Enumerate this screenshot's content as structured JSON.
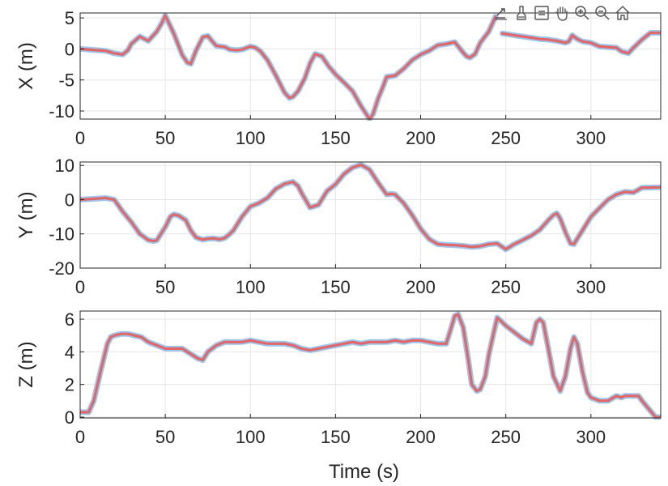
{
  "toolbar": {
    "icons": [
      "export-icon",
      "brush-icon",
      "datatips-icon",
      "pan-icon",
      "zoom-in-icon",
      "zoom-out-icon",
      "home-icon"
    ]
  },
  "chart_data": [
    {
      "type": "line",
      "title": "",
      "xlabel": "",
      "ylabel": "X (m)",
      "xlim": [
        0,
        341
      ],
      "ylim": [
        -11.3,
        5.8
      ],
      "xticks": [
        0,
        50,
        100,
        150,
        200,
        250,
        300
      ],
      "yticks": [
        -10,
        -5,
        0,
        5
      ],
      "grid": true,
      "colors": {
        "series_a": "#9ec5ea",
        "series_b": "#e06668"
      },
      "series": [
        {
          "x": [
            0,
            10,
            15,
            20,
            25,
            28,
            30,
            35,
            40,
            45,
            48,
            50,
            55,
            60,
            63,
            65,
            68,
            72,
            75,
            78,
            80,
            85,
            88,
            92,
            95,
            100,
            103,
            106,
            110,
            115,
            120,
            123,
            125,
            128,
            132,
            135,
            138,
            142,
            146,
            150,
            155,
            160,
            165,
            170,
            172,
            175,
            178,
            180,
            185,
            190,
            195,
            200,
            205,
            210,
            215,
            220,
            225,
            227,
            229,
            232,
            235,
            240,
            244
          ],
          "y": [
            0,
            -0.2,
            -0.3,
            -0.7,
            -0.9,
            -0.2,
            0.8,
            2.0,
            1.3,
            2.8,
            4.2,
            5.4,
            2.5,
            -1.0,
            -2.2,
            -2.4,
            -0.3,
            1.9,
            2.1,
            1.1,
            0.5,
            0.3,
            -0.1,
            -0.2,
            -0.1,
            0.4,
            0.2,
            -0.4,
            -1.8,
            -4.3,
            -7.0,
            -7.9,
            -7.7,
            -6.8,
            -4.7,
            -2.3,
            -0.8,
            -1.2,
            -2.8,
            -4.1,
            -5.4,
            -6.8,
            -9.2,
            -11.3,
            -10.5,
            -8.0,
            -6.0,
            -4.5,
            -4.3,
            -3.2,
            -1.8,
            -0.9,
            -0.3,
            0.6,
            0.8,
            1.1,
            -0.6,
            -1.2,
            -1.4,
            -0.8,
            1.0,
            2.8,
            5.2
          ]
        },
        {
          "x": [
            248,
            255,
            260,
            265,
            270,
            275,
            280,
            285,
            287,
            289,
            292,
            295,
            300,
            305,
            310,
            315,
            318,
            322,
            325,
            330,
            335,
            341
          ],
          "y": [
            2.5,
            2.2,
            2.0,
            1.8,
            1.6,
            1.5,
            1.3,
            1.0,
            1.2,
            2.2,
            1.6,
            1.2,
            1.0,
            0.4,
            0.3,
            0.2,
            -0.4,
            -0.7,
            0.2,
            1.5,
            2.6,
            2.6
          ]
        }
      ]
    },
    {
      "type": "line",
      "title": "",
      "xlabel": "",
      "ylabel": "Y (m)",
      "xlim": [
        0,
        341
      ],
      "ylim": [
        -20,
        11
      ],
      "xticks": [
        0,
        50,
        100,
        150,
        200,
        250,
        300
      ],
      "yticks": [
        -20,
        -10,
        0,
        10
      ],
      "grid": true,
      "series": [
        {
          "x": [
            0,
            10,
            15,
            20,
            25,
            30,
            35,
            40,
            43,
            45,
            50,
            53,
            55,
            58,
            62,
            65,
            68,
            72,
            75,
            78,
            82,
            85,
            88,
            90,
            95,
            100,
            105,
            110,
            115,
            118,
            120,
            125,
            128,
            130,
            135,
            140,
            145,
            150,
            155,
            160,
            165,
            170,
            175,
            180,
            183,
            185,
            190,
            195,
            200,
            205,
            210,
            215,
            220,
            225,
            230,
            235,
            240,
            245,
            250,
            255,
            260,
            265,
            270,
            275,
            278,
            280,
            282,
            285,
            288,
            290,
            295,
            300,
            305,
            310,
            315,
            320,
            325,
            330,
            341
          ],
          "y": [
            0,
            0.3,
            0.5,
            0,
            -3.5,
            -6.5,
            -10.0,
            -11.8,
            -12.1,
            -11.9,
            -8.0,
            -5.0,
            -4.3,
            -4.7,
            -6.0,
            -9.0,
            -11.0,
            -11.7,
            -11.4,
            -11.3,
            -11.6,
            -11.2,
            -10.0,
            -9.0,
            -5.0,
            -2.0,
            -1.0,
            0.5,
            3.2,
            4.0,
            4.6,
            5.2,
            4.0,
            2.0,
            -2.3,
            -1.5,
            2.5,
            4.5,
            7.5,
            9.4,
            10.2,
            8.8,
            5.0,
            1.5,
            1.7,
            1.5,
            -1.0,
            -4.5,
            -8.5,
            -11.5,
            -13.0,
            -13.2,
            -13.3,
            -13.5,
            -13.8,
            -13.6,
            -13.0,
            -12.8,
            -14.5,
            -13.0,
            -11.8,
            -10.5,
            -8.8,
            -6.0,
            -4.5,
            -4.0,
            -5.5,
            -9.5,
            -12.8,
            -13.0,
            -9.0,
            -5.0,
            -2.5,
            0,
            1.5,
            2.3,
            2.1,
            3.5,
            3.6
          ]
        }
      ]
    },
    {
      "type": "line",
      "title": "",
      "xlabel": "Time (s)",
      "ylabel": "Z (m)",
      "xlim": [
        0,
        341
      ],
      "ylim": [
        -0.05,
        6.5
      ],
      "xticks": [
        0,
        50,
        100,
        150,
        200,
        250,
        300
      ],
      "yticks": [
        0,
        2,
        4,
        6
      ],
      "grid": true,
      "series": [
        {
          "x": [
            0,
            5,
            8,
            12,
            16,
            18,
            20,
            24,
            28,
            32,
            36,
            40,
            45,
            50,
            55,
            60,
            63,
            66,
            69,
            72,
            75,
            80,
            85,
            90,
            95,
            100,
            105,
            110,
            115,
            120,
            125,
            130,
            135,
            140,
            145,
            150,
            155,
            160,
            165,
            170,
            175,
            180,
            185,
            190,
            195,
            200,
            205,
            210,
            215,
            218,
            220,
            222,
            225,
            228,
            230,
            233,
            235,
            238,
            240,
            243,
            245,
            248,
            250,
            255,
            260,
            265,
            268,
            270,
            272,
            275,
            278,
            282,
            285,
            288,
            290,
            292,
            295,
            298,
            300,
            305,
            310,
            315,
            318,
            320,
            325,
            328,
            330,
            334,
            338,
            341
          ],
          "y": [
            0.3,
            0.3,
            1.0,
            2.8,
            4.5,
            4.9,
            5.0,
            5.1,
            5.1,
            5.0,
            4.9,
            4.6,
            4.4,
            4.2,
            4.2,
            4.2,
            4.0,
            3.8,
            3.6,
            3.5,
            4.0,
            4.4,
            4.6,
            4.6,
            4.6,
            4.7,
            4.6,
            4.5,
            4.5,
            4.5,
            4.4,
            4.2,
            4.1,
            4.2,
            4.3,
            4.4,
            4.5,
            4.6,
            4.5,
            4.6,
            4.6,
            4.6,
            4.7,
            4.6,
            4.7,
            4.7,
            4.6,
            4.5,
            4.5,
            5.5,
            6.2,
            6.3,
            5.5,
            3.5,
            2.0,
            1.6,
            1.7,
            2.5,
            3.8,
            5.2,
            6.1,
            5.8,
            5.6,
            5.2,
            4.8,
            4.5,
            5.8,
            6.0,
            5.8,
            4.2,
            2.5,
            1.6,
            2.5,
            4.2,
            4.9,
            4.5,
            2.8,
            1.5,
            1.2,
            1.0,
            1.0,
            1.3,
            1.2,
            1.3,
            1.3,
            1.3,
            1.0,
            0.5,
            0,
            0
          ]
        }
      ]
    }
  ]
}
